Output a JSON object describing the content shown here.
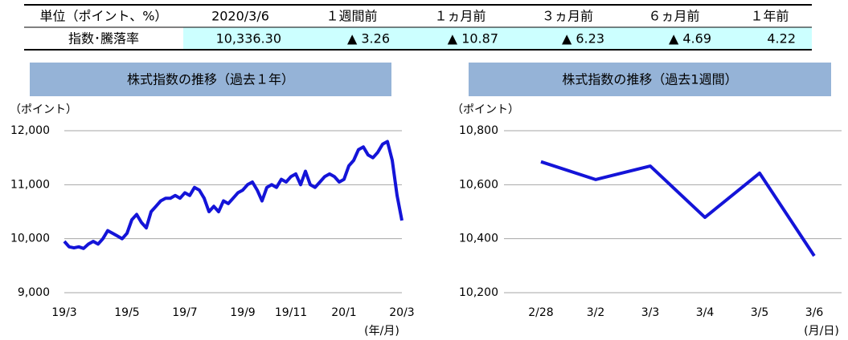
{
  "table": {
    "header": [
      "単位（ポイント、%）",
      "2020/3/6",
      "１週間前",
      "１ヵ月前",
      "３ヵ月前",
      "６ヵ月前",
      "１年前"
    ],
    "rows": [
      [
        "指数･騰落率",
        "10,336.30",
        "▲ 3.26",
        "▲ 10.87",
        "▲ 6.23",
        "▲ 4.69",
        "4.22"
      ]
    ]
  },
  "chart_data": [
    {
      "type": "line",
      "title": "株式指数の推移（過去１年）",
      "ylabel": "（ポイント）",
      "xlabel": "(年/月)",
      "categories": [
        "19/3",
        null,
        null,
        null,
        null,
        null,
        null,
        null,
        null,
        null,
        null,
        null,
        null,
        "19/5",
        null,
        null,
        null,
        null,
        null,
        null,
        null,
        null,
        null,
        null,
        null,
        "19/7",
        null,
        null,
        null,
        null,
        null,
        null,
        null,
        null,
        null,
        null,
        null,
        "19/9",
        null,
        null,
        null,
        null,
        null,
        null,
        null,
        null,
        null,
        "19/11",
        null,
        null,
        null,
        null,
        null,
        null,
        null,
        null,
        null,
        null,
        "20/1",
        null,
        null,
        null,
        null,
        null,
        null,
        null,
        null,
        null,
        null,
        null,
        "20/3"
      ],
      "series": [
        {
          "name": "株式指数",
          "color": "#1414d8",
          "values": [
            9950,
            9850,
            9830,
            9850,
            9820,
            9900,
            9950,
            9900,
            10000,
            10150,
            10100,
            10050,
            10000,
            10100,
            10350,
            10450,
            10300,
            10200,
            10500,
            10600,
            10700,
            10750,
            10750,
            10800,
            10750,
            10850,
            10800,
            10950,
            10900,
            10750,
            10500,
            10600,
            10500,
            10700,
            10650,
            10750,
            10850,
            10900,
            11000,
            11050,
            10900,
            10700,
            10950,
            11000,
            10950,
            11100,
            11050,
            11150,
            11200,
            11000,
            11250,
            11000,
            10950,
            11050,
            11150,
            11200,
            11150,
            11050,
            11100,
            11350,
            11450,
            11650,
            11700,
            11550,
            11500,
            11600,
            11750,
            11800,
            11450,
            10800,
            10336.3
          ]
        }
      ],
      "ylim": [
        9000,
        12000
      ],
      "yticks": [
        {
          "value": 9000,
          "label": "9,000"
        },
        {
          "value": 10000,
          "label": "10,000"
        },
        {
          "value": 11000,
          "label": "11,000"
        },
        {
          "value": 12000,
          "label": "12,000"
        }
      ],
      "grid": true
    },
    {
      "type": "line",
      "title": "株式指数の推移（過去1週間）",
      "ylabel": "（ポイント）",
      "xlabel": "(月/日)",
      "categories": [
        "2/28",
        "3/2",
        "3/3",
        "3/4",
        "3/5",
        "3/6"
      ],
      "series": [
        {
          "name": "株式指数",
          "color": "#1414d8",
          "values": [
            10685,
            10619,
            10669,
            10479,
            10643,
            10336.3
          ]
        }
      ],
      "ylim": [
        10200,
        10800
      ],
      "yticks": [
        {
          "value": 10200,
          "label": "10,200"
        },
        {
          "value": 10400,
          "label": "10,400"
        },
        {
          "value": 10600,
          "label": "10,600"
        },
        {
          "value": 10800,
          "label": "10,800"
        }
      ],
      "grid": true
    }
  ]
}
